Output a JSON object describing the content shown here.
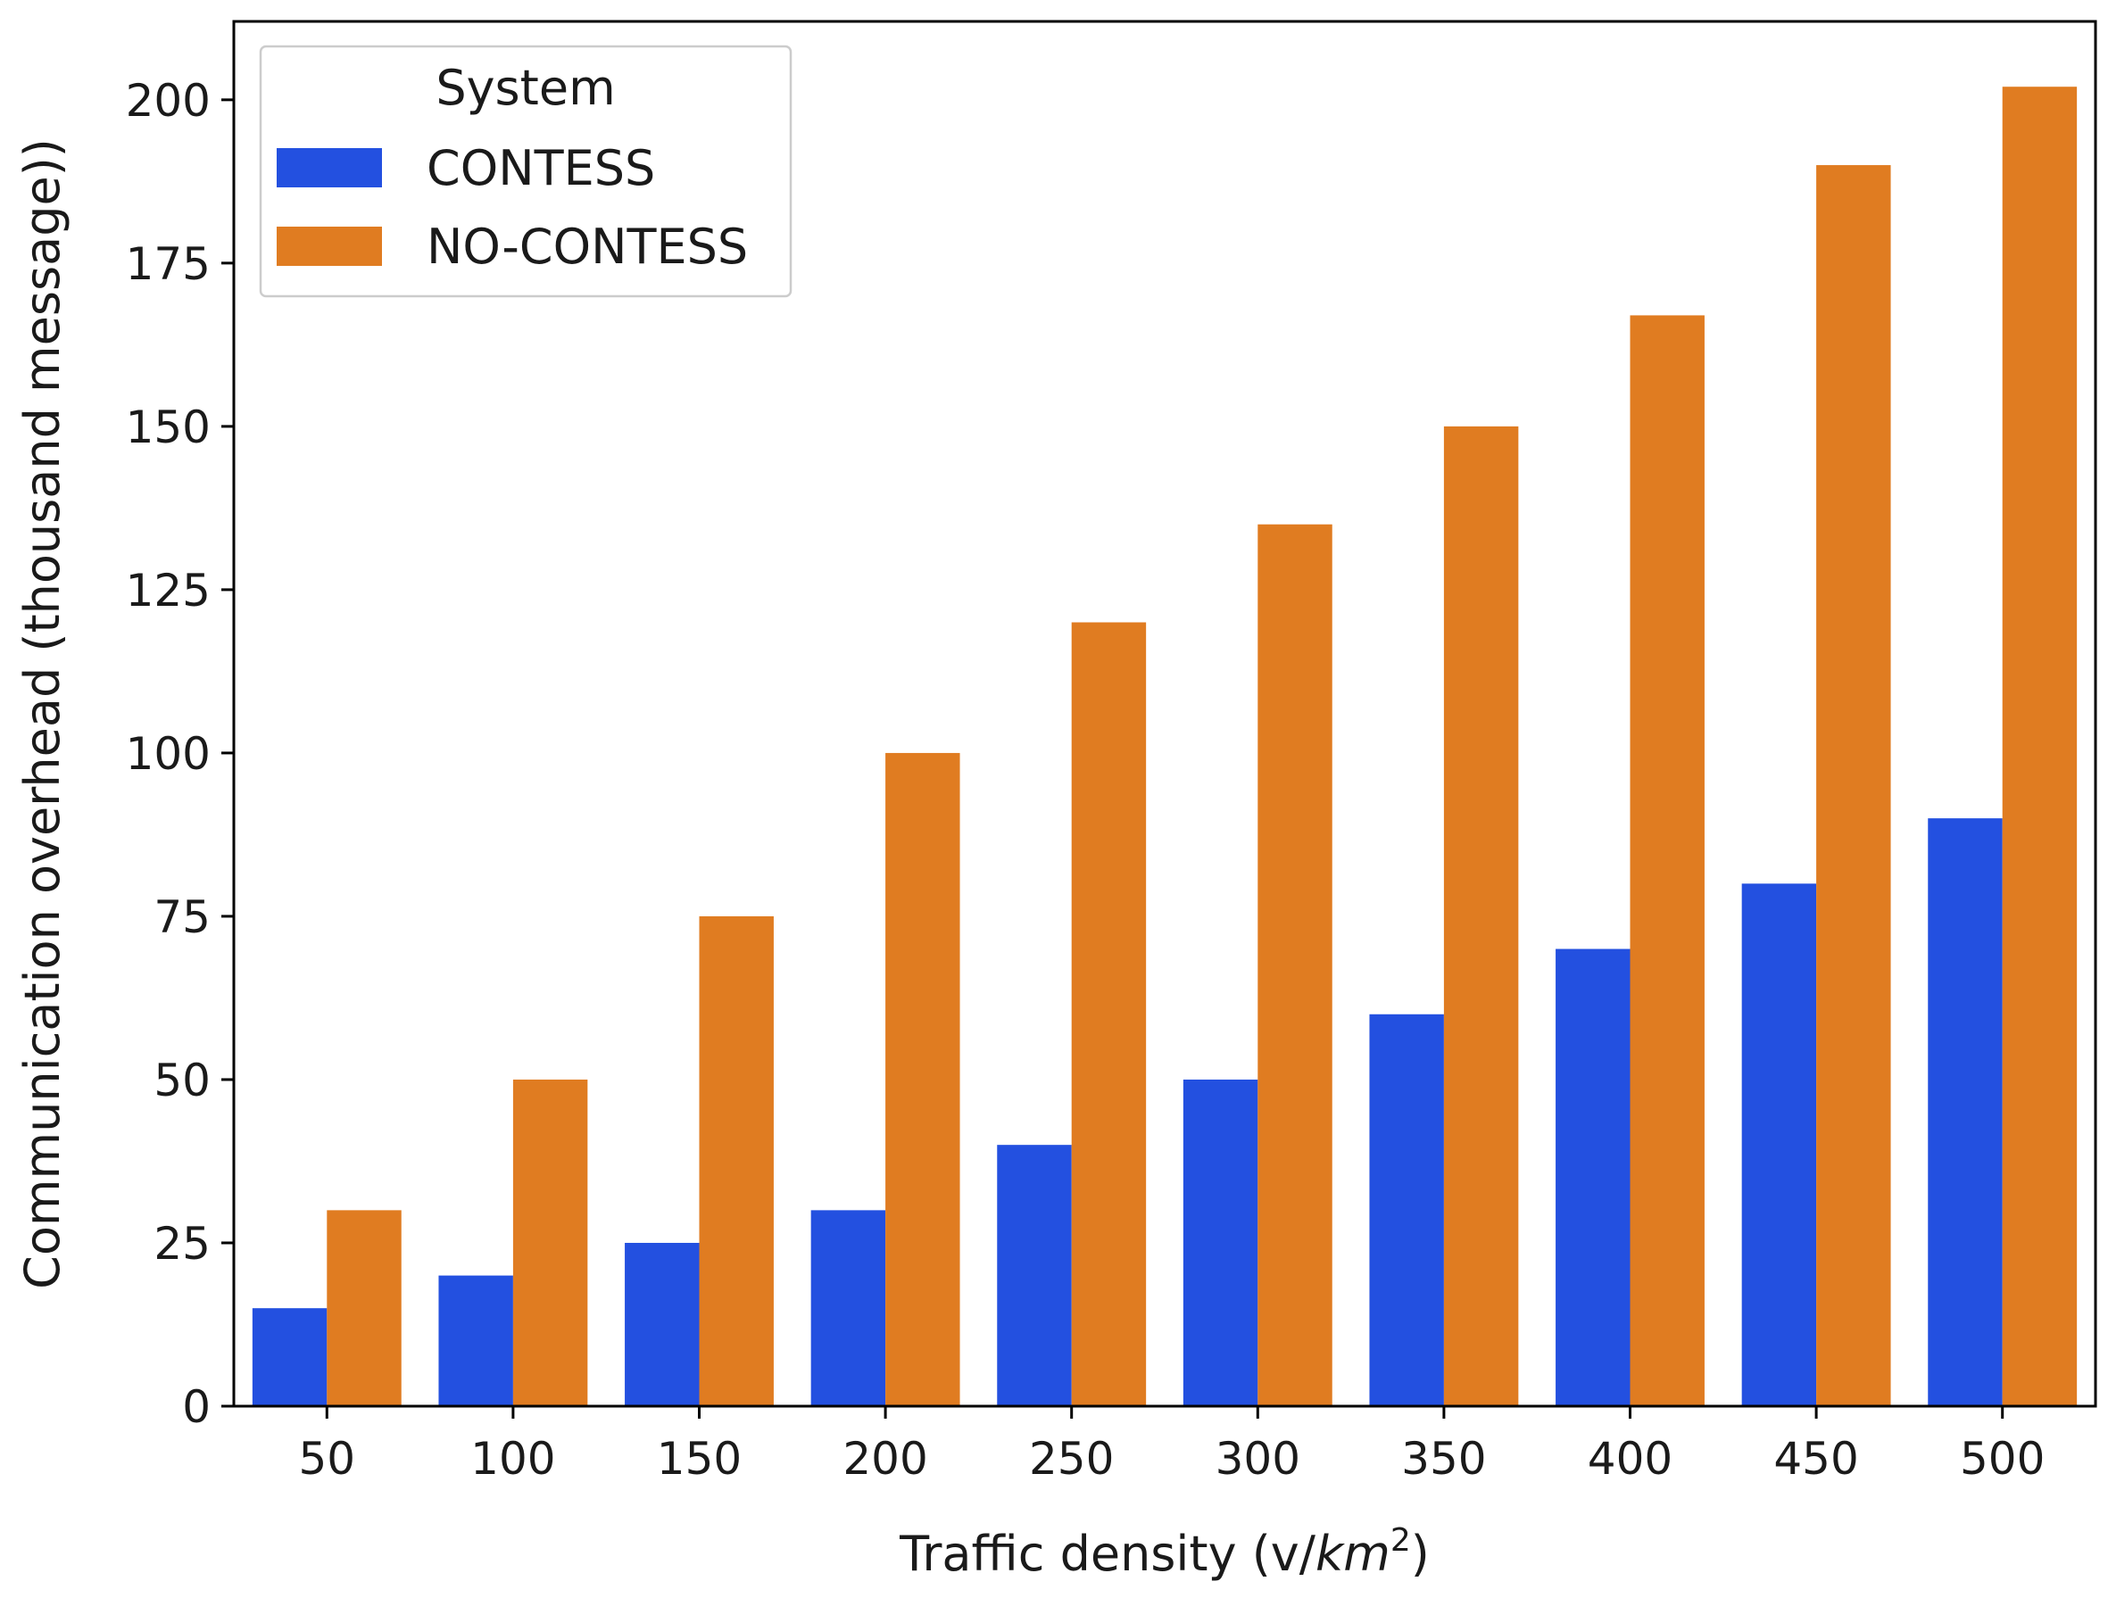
{
  "chart_data": {
    "type": "bar",
    "title": "",
    "xlabel": "Traffic density (v/",
    "xlabel_unit": "km",
    "xlabel_sup": "2",
    "xlabel_close": ")",
    "ylabel": "Communication overhead (thousand message))",
    "categories": [
      "50",
      "100",
      "150",
      "200",
      "250",
      "300",
      "350",
      "400",
      "450",
      "500"
    ],
    "yticks": [
      "0",
      "25",
      "50",
      "75",
      "100",
      "125",
      "150",
      "175",
      "200"
    ],
    "ylim": [
      0,
      212
    ],
    "legend": {
      "title": "System",
      "position": "top-left"
    },
    "series": [
      {
        "name": "CONTESS",
        "color": "#2350e0",
        "values": [
          15,
          20,
          25,
          30,
          40,
          50,
          60,
          70,
          80,
          90
        ]
      },
      {
        "name": "NO-CONTESS",
        "color": "#e07c21",
        "values": [
          30,
          50,
          75,
          100,
          120,
          135,
          150,
          167,
          190,
          202
        ]
      }
    ]
  }
}
